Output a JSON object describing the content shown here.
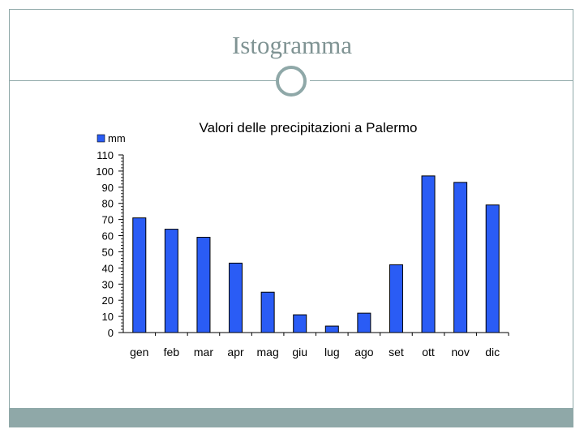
{
  "slide": {
    "title": "Istogramma"
  },
  "colors": {
    "bar_fill": "#2a5cf5",
    "bar_stroke": "#000000",
    "accent": "#8fa8a8",
    "title_text": "#7f9393"
  },
  "chart_data": {
    "type": "bar",
    "title": "Valori delle precipitazioni a Palermo",
    "xlabel": "",
    "ylabel": "",
    "legend": {
      "position": "top-left",
      "entries": [
        "mm"
      ]
    },
    "categories": [
      "gen",
      "feb",
      "mar",
      "apr",
      "mag",
      "giu",
      "lug",
      "ago",
      "set",
      "ott",
      "nov",
      "dic"
    ],
    "series": [
      {
        "name": "mm",
        "values": [
          71,
          64,
          59,
          43,
          25,
          11,
          4,
          12,
          42,
          97,
          93,
          79
        ]
      }
    ],
    "ylim": [
      0,
      110
    ],
    "yticks": [
      0,
      10,
      20,
      30,
      40,
      50,
      60,
      70,
      80,
      90,
      100,
      110
    ],
    "grid": false
  }
}
